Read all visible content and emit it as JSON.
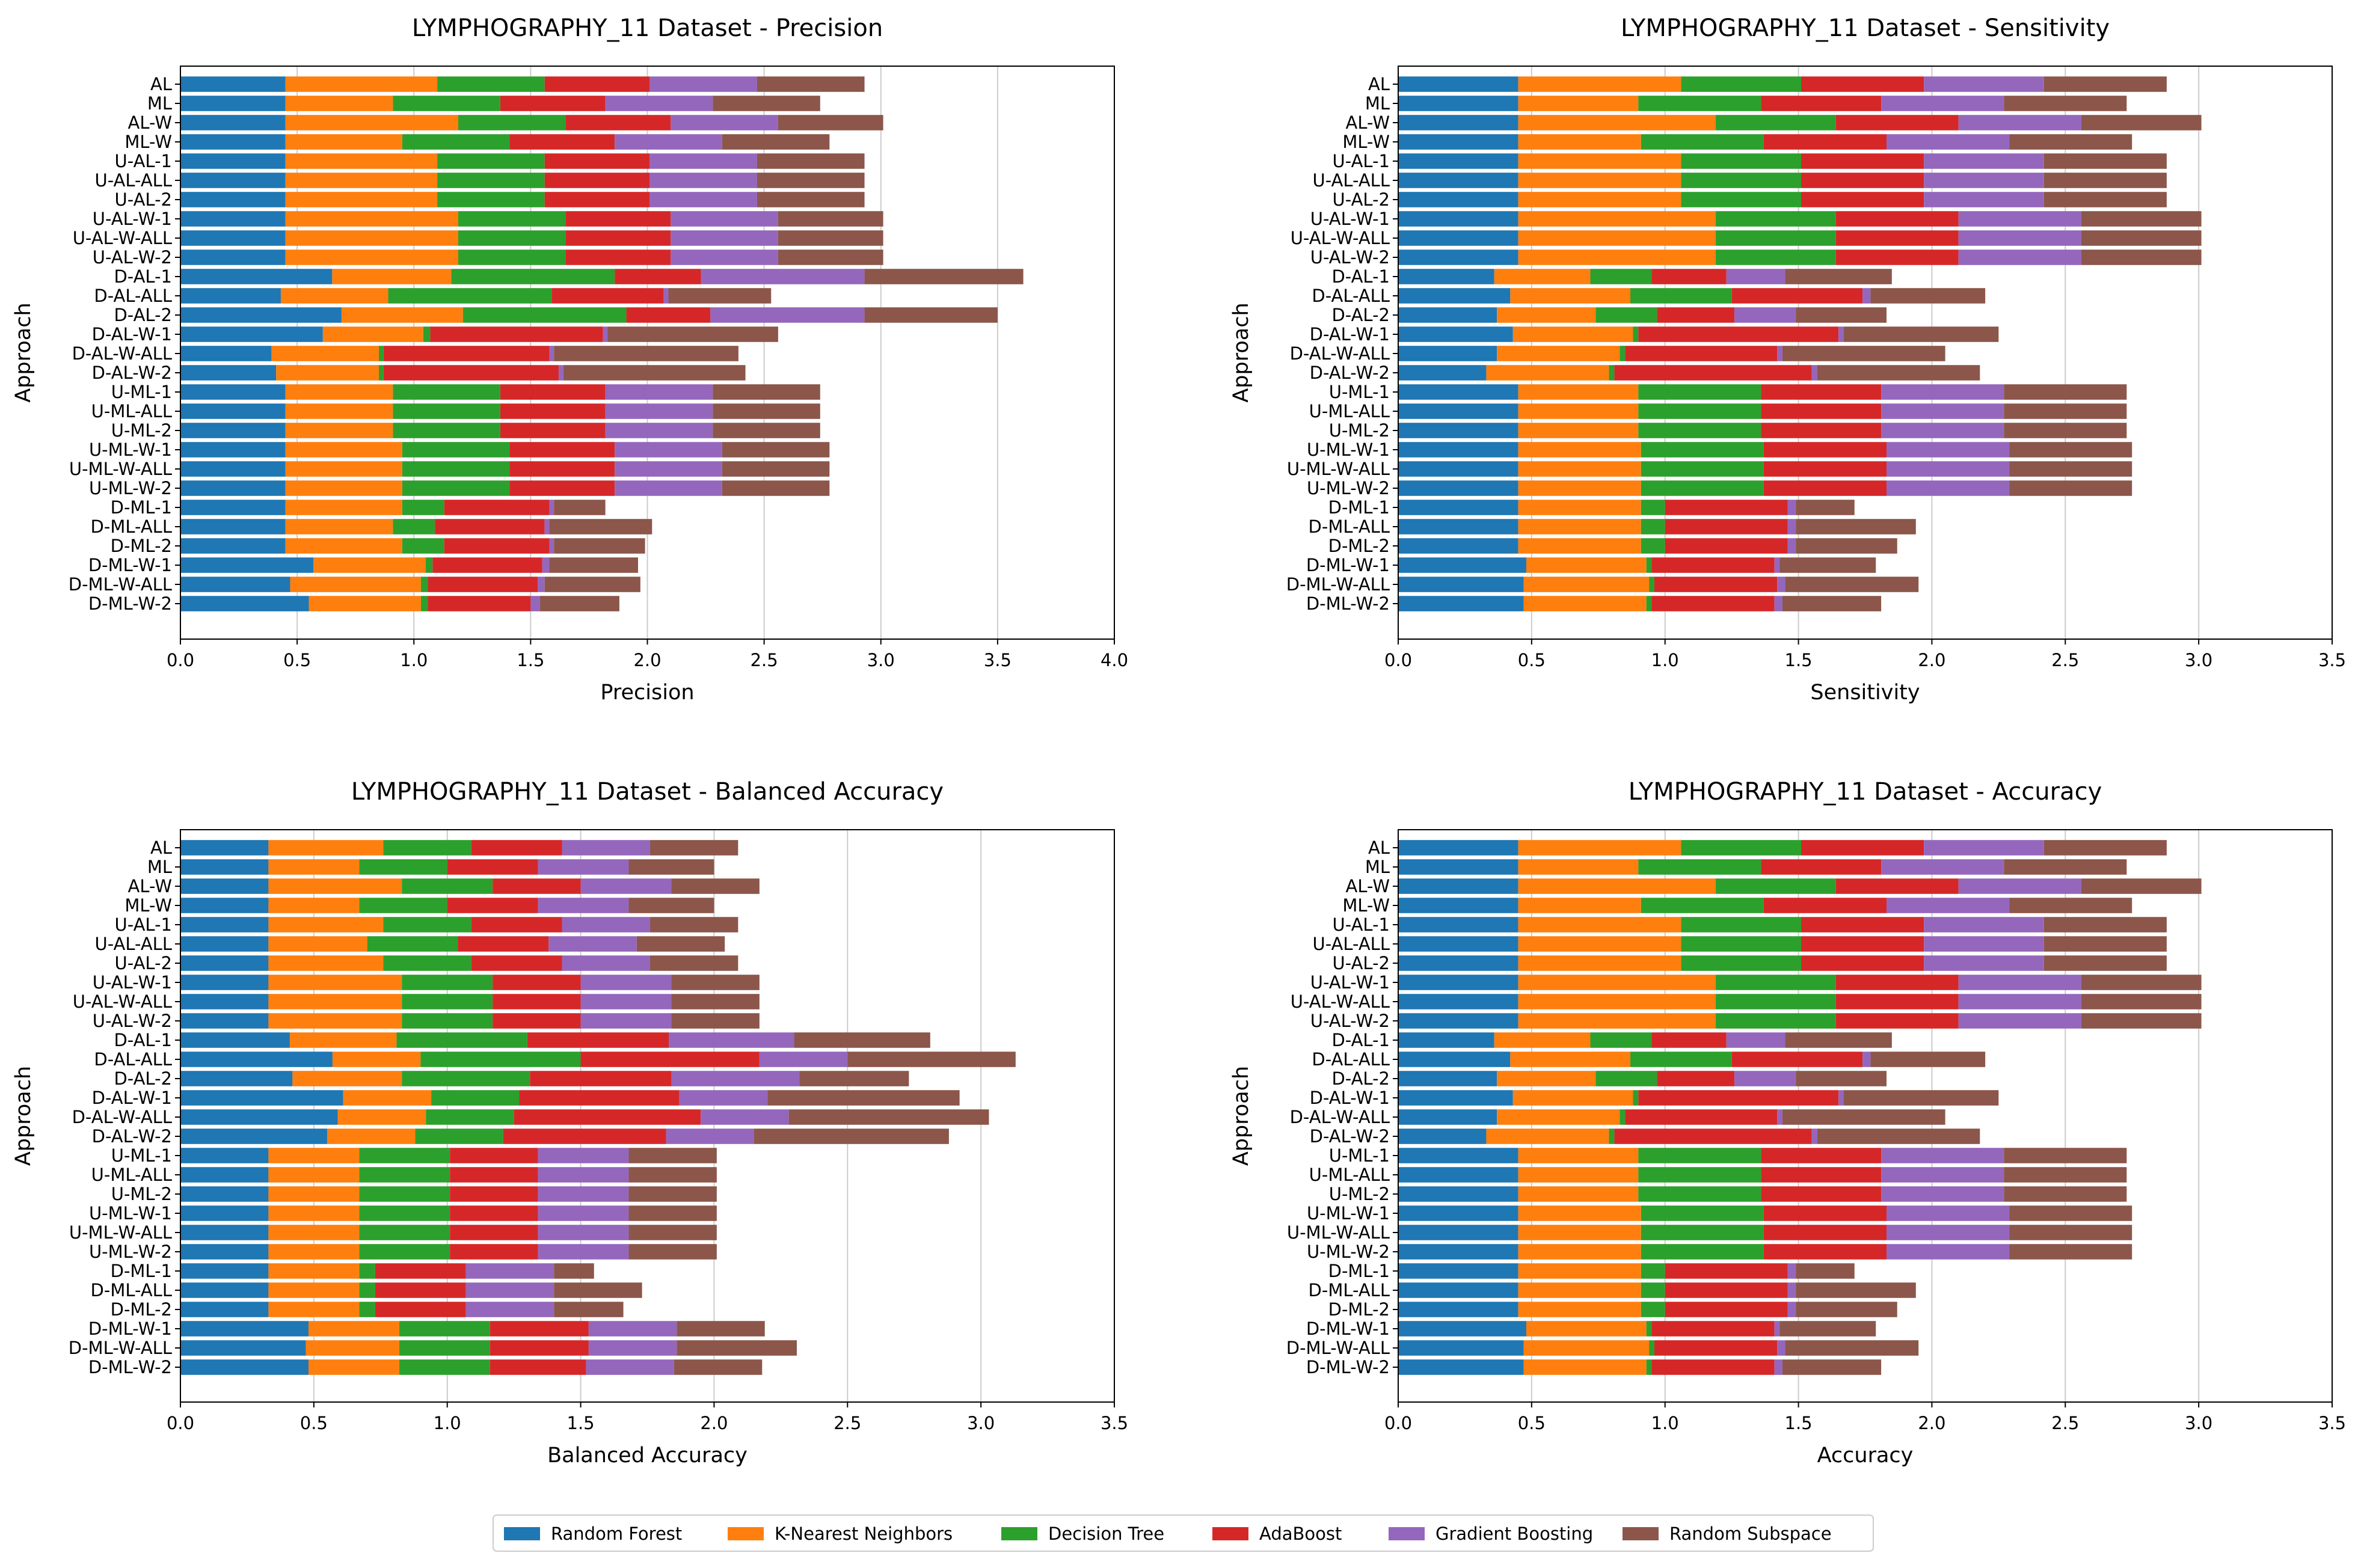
{
  "colors": {
    "Random Forest": "#1f77b4",
    "K-Nearest Neighbors": "#ff7f0e",
    "Decision Tree": "#2ca02c",
    "AdaBoost": "#d62728",
    "Gradient Boosting": "#9467bd",
    "Random Subspace": "#8c564b",
    "grid": "#cccccc"
  },
  "legend": {
    "entries": [
      "Random Forest",
      "K-Nearest Neighbors",
      "Decision Tree",
      "AdaBoost",
      "Gradient Boosting",
      "Random Subspace"
    ]
  },
  "chart_data": [
    {
      "type": "bar",
      "orientation": "horizontal-stacked",
      "title": "LYMPHOGRAPHY_11 Dataset - Precision",
      "xlabel": "Precision",
      "ylabel": "Approach",
      "xlim": [
        0,
        4.0
      ],
      "xticks": [
        "0.0",
        "0.5",
        "1.0",
        "1.5",
        "2.0",
        "2.5",
        "3.0",
        "3.5",
        "4.0"
      ],
      "grid": "vertical",
      "categories": [
        "D-ML-W-2",
        "D-ML-W-ALL",
        "D-ML-W-1",
        "D-ML-2",
        "D-ML-ALL",
        "D-ML-1",
        "U-ML-W-2",
        "U-ML-W-ALL",
        "U-ML-W-1",
        "U-ML-2",
        "U-ML-ALL",
        "U-ML-1",
        "D-AL-W-2",
        "D-AL-W-ALL",
        "D-AL-W-1",
        "D-AL-2",
        "D-AL-ALL",
        "D-AL-1",
        "U-AL-W-2",
        "U-AL-W-ALL",
        "U-AL-W-1",
        "U-AL-2",
        "U-AL-ALL",
        "U-AL-1",
        "ML-W",
        "AL-W",
        "ML",
        "AL"
      ],
      "series": [
        {
          "name": "Random Forest",
          "values": [
            0.55,
            0.47,
            0.57,
            0.45,
            0.45,
            0.45,
            0.45,
            0.45,
            0.45,
            0.45,
            0.45,
            0.45,
            0.41,
            0.39,
            0.61,
            0.69,
            0.43,
            0.65,
            0.45,
            0.45,
            0.45,
            0.45,
            0.45,
            0.45,
            0.45,
            0.45,
            0.45,
            0.45
          ]
        },
        {
          "name": "K-Nearest Neighbors",
          "values": [
            0.48,
            0.56,
            0.48,
            0.5,
            0.46,
            0.5,
            0.5,
            0.5,
            0.5,
            0.46,
            0.46,
            0.46,
            0.44,
            0.46,
            0.43,
            0.52,
            0.46,
            0.51,
            0.74,
            0.74,
            0.74,
            0.65,
            0.65,
            0.65,
            0.5,
            0.74,
            0.46,
            0.65
          ]
        },
        {
          "name": "Decision Tree",
          "values": [
            0.03,
            0.03,
            0.03,
            0.18,
            0.18,
            0.18,
            0.46,
            0.46,
            0.46,
            0.46,
            0.46,
            0.46,
            0.02,
            0.02,
            0.03,
            0.7,
            0.7,
            0.7,
            0.46,
            0.46,
            0.46,
            0.46,
            0.46,
            0.46,
            0.46,
            0.46,
            0.46,
            0.46
          ]
        },
        {
          "name": "AdaBoost",
          "values": [
            0.44,
            0.47,
            0.47,
            0.45,
            0.47,
            0.45,
            0.45,
            0.45,
            0.45,
            0.45,
            0.45,
            0.45,
            0.75,
            0.71,
            0.74,
            0.36,
            0.48,
            0.37,
            0.45,
            0.45,
            0.45,
            0.45,
            0.45,
            0.45,
            0.45,
            0.45,
            0.45,
            0.45
          ]
        },
        {
          "name": "Gradient Boosting",
          "values": [
            0.04,
            0.03,
            0.03,
            0.02,
            0.02,
            0.02,
            0.46,
            0.46,
            0.46,
            0.46,
            0.46,
            0.46,
            0.02,
            0.02,
            0.02,
            0.66,
            0.02,
            0.7,
            0.46,
            0.46,
            0.46,
            0.46,
            0.46,
            0.46,
            0.46,
            0.46,
            0.46,
            0.46
          ]
        },
        {
          "name": "Random Subspace",
          "values": [
            0.34,
            0.41,
            0.38,
            0.39,
            0.44,
            0.22,
            0.46,
            0.46,
            0.46,
            0.46,
            0.46,
            0.46,
            0.78,
            0.79,
            0.73,
            0.57,
            0.44,
            0.68,
            0.45,
            0.45,
            0.45,
            0.46,
            0.46,
            0.46,
            0.46,
            0.45,
            0.46,
            0.46
          ]
        }
      ]
    },
    {
      "type": "bar",
      "orientation": "horizontal-stacked",
      "title": "LYMPHOGRAPHY_11 Dataset - Sensitivity",
      "xlabel": "Sensitivity",
      "ylabel": "Approach",
      "xlim": [
        0,
        3.5
      ],
      "xticks": [
        "0.0",
        "0.5",
        "1.0",
        "1.5",
        "2.0",
        "2.5",
        "3.0",
        "3.5"
      ],
      "grid": "vertical",
      "categories": [
        "D-ML-W-2",
        "D-ML-W-ALL",
        "D-ML-W-1",
        "D-ML-2",
        "D-ML-ALL",
        "D-ML-1",
        "U-ML-W-2",
        "U-ML-W-ALL",
        "U-ML-W-1",
        "U-ML-2",
        "U-ML-ALL",
        "U-ML-1",
        "D-AL-W-2",
        "D-AL-W-ALL",
        "D-AL-W-1",
        "D-AL-2",
        "D-AL-ALL",
        "D-AL-1",
        "U-AL-W-2",
        "U-AL-W-ALL",
        "U-AL-W-1",
        "U-AL-2",
        "U-AL-ALL",
        "U-AL-1",
        "ML-W",
        "AL-W",
        "ML",
        "AL"
      ],
      "series": [
        {
          "name": "Random Forest",
          "values": [
            0.47,
            0.47,
            0.48,
            0.45,
            0.45,
            0.45,
            0.45,
            0.45,
            0.45,
            0.45,
            0.45,
            0.45,
            0.33,
            0.37,
            0.43,
            0.37,
            0.42,
            0.36,
            0.45,
            0.45,
            0.45,
            0.45,
            0.45,
            0.45,
            0.45,
            0.45,
            0.45,
            0.45
          ]
        },
        {
          "name": "K-Nearest Neighbors",
          "values": [
            0.46,
            0.47,
            0.45,
            0.46,
            0.46,
            0.46,
            0.46,
            0.46,
            0.46,
            0.45,
            0.45,
            0.45,
            0.46,
            0.46,
            0.45,
            0.37,
            0.45,
            0.36,
            0.74,
            0.74,
            0.74,
            0.61,
            0.61,
            0.61,
            0.46,
            0.74,
            0.45,
            0.61
          ]
        },
        {
          "name": "Decision Tree",
          "values": [
            0.02,
            0.02,
            0.02,
            0.09,
            0.09,
            0.09,
            0.46,
            0.46,
            0.46,
            0.46,
            0.46,
            0.46,
            0.02,
            0.02,
            0.02,
            0.23,
            0.38,
            0.23,
            0.45,
            0.45,
            0.45,
            0.45,
            0.45,
            0.45,
            0.46,
            0.45,
            0.46,
            0.45
          ]
        },
        {
          "name": "AdaBoost",
          "values": [
            0.46,
            0.46,
            0.46,
            0.46,
            0.46,
            0.46,
            0.46,
            0.46,
            0.46,
            0.45,
            0.45,
            0.45,
            0.74,
            0.57,
            0.75,
            0.29,
            0.49,
            0.28,
            0.46,
            0.46,
            0.46,
            0.46,
            0.46,
            0.46,
            0.46,
            0.46,
            0.45,
            0.46
          ]
        },
        {
          "name": "Gradient Boosting",
          "values": [
            0.03,
            0.03,
            0.02,
            0.03,
            0.03,
            0.03,
            0.46,
            0.46,
            0.46,
            0.46,
            0.46,
            0.46,
            0.02,
            0.02,
            0.02,
            0.23,
            0.03,
            0.22,
            0.46,
            0.46,
            0.46,
            0.45,
            0.45,
            0.45,
            0.46,
            0.46,
            0.46,
            0.45
          ]
        },
        {
          "name": "Random Subspace",
          "values": [
            0.37,
            0.5,
            0.36,
            0.38,
            0.45,
            0.22,
            0.46,
            0.46,
            0.46,
            0.46,
            0.46,
            0.46,
            0.61,
            0.61,
            0.58,
            0.34,
            0.43,
            0.4,
            0.45,
            0.45,
            0.45,
            0.46,
            0.46,
            0.46,
            0.46,
            0.45,
            0.46,
            0.46
          ]
        }
      ]
    },
    {
      "type": "bar",
      "orientation": "horizontal-stacked",
      "title": "LYMPHOGRAPHY_11 Dataset - Balanced Accuracy",
      "xlabel": "Balanced Accuracy",
      "ylabel": "Approach",
      "xlim": [
        0,
        3.5
      ],
      "xticks": [
        "0.0",
        "0.5",
        "1.0",
        "1.5",
        "2.0",
        "2.5",
        "3.0",
        "3.5"
      ],
      "grid": "vertical",
      "categories": [
        "D-ML-W-2",
        "D-ML-W-ALL",
        "D-ML-W-1",
        "D-ML-2",
        "D-ML-ALL",
        "D-ML-1",
        "U-ML-W-2",
        "U-ML-W-ALL",
        "U-ML-W-1",
        "U-ML-2",
        "U-ML-ALL",
        "U-ML-1",
        "D-AL-W-2",
        "D-AL-W-ALL",
        "D-AL-W-1",
        "D-AL-2",
        "D-AL-ALL",
        "D-AL-1",
        "U-AL-W-2",
        "U-AL-W-ALL",
        "U-AL-W-1",
        "U-AL-2",
        "U-AL-ALL",
        "U-AL-1",
        "ML-W",
        "AL-W",
        "ML",
        "AL"
      ],
      "series": [
        {
          "name": "Random Forest",
          "values": [
            0.48,
            0.47,
            0.48,
            0.33,
            0.33,
            0.33,
            0.33,
            0.33,
            0.33,
            0.33,
            0.33,
            0.33,
            0.55,
            0.59,
            0.61,
            0.42,
            0.57,
            0.41,
            0.33,
            0.33,
            0.33,
            0.33,
            0.33,
            0.33,
            0.33,
            0.33,
            0.33,
            0.33
          ]
        },
        {
          "name": "K-Nearest Neighbors",
          "values": [
            0.34,
            0.35,
            0.34,
            0.34,
            0.34,
            0.34,
            0.34,
            0.34,
            0.34,
            0.34,
            0.34,
            0.34,
            0.33,
            0.33,
            0.33,
            0.41,
            0.33,
            0.4,
            0.5,
            0.5,
            0.5,
            0.43,
            0.37,
            0.43,
            0.34,
            0.5,
            0.34,
            0.43
          ]
        },
        {
          "name": "Decision Tree",
          "values": [
            0.34,
            0.34,
            0.34,
            0.06,
            0.06,
            0.06,
            0.34,
            0.34,
            0.34,
            0.34,
            0.34,
            0.34,
            0.33,
            0.33,
            0.33,
            0.48,
            0.6,
            0.49,
            0.34,
            0.34,
            0.34,
            0.33,
            0.34,
            0.33,
            0.33,
            0.34,
            0.33,
            0.33
          ]
        },
        {
          "name": "AdaBoost",
          "values": [
            0.36,
            0.37,
            0.37,
            0.34,
            0.34,
            0.34,
            0.33,
            0.33,
            0.33,
            0.33,
            0.33,
            0.33,
            0.61,
            0.7,
            0.6,
            0.53,
            0.67,
            0.53,
            0.33,
            0.33,
            0.33,
            0.34,
            0.34,
            0.34,
            0.34,
            0.33,
            0.34,
            0.34
          ]
        },
        {
          "name": "Gradient Boosting",
          "values": [
            0.33,
            0.33,
            0.33,
            0.33,
            0.33,
            0.33,
            0.34,
            0.34,
            0.34,
            0.34,
            0.34,
            0.34,
            0.33,
            0.33,
            0.33,
            0.48,
            0.33,
            0.47,
            0.34,
            0.34,
            0.34,
            0.33,
            0.33,
            0.33,
            0.34,
            0.34,
            0.34,
            0.33
          ]
        },
        {
          "name": "Random Subspace",
          "values": [
            0.33,
            0.45,
            0.33,
            0.26,
            0.33,
            0.15,
            0.33,
            0.33,
            0.33,
            0.33,
            0.33,
            0.33,
            0.73,
            0.75,
            0.72,
            0.41,
            0.63,
            0.51,
            0.33,
            0.33,
            0.33,
            0.33,
            0.33,
            0.33,
            0.32,
            0.33,
            0.32,
            0.33
          ]
        }
      ]
    },
    {
      "type": "bar",
      "orientation": "horizontal-stacked",
      "title": "LYMPHOGRAPHY_11 Dataset - Accuracy",
      "xlabel": "Accuracy",
      "ylabel": "Approach",
      "xlim": [
        0,
        3.5
      ],
      "xticks": [
        "0.0",
        "0.5",
        "1.0",
        "1.5",
        "2.0",
        "2.5",
        "3.0",
        "3.5"
      ],
      "grid": "vertical",
      "categories": [
        "D-ML-W-2",
        "D-ML-W-ALL",
        "D-ML-W-1",
        "D-ML-2",
        "D-ML-ALL",
        "D-ML-1",
        "U-ML-W-2",
        "U-ML-W-ALL",
        "U-ML-W-1",
        "U-ML-2",
        "U-ML-ALL",
        "U-ML-1",
        "D-AL-W-2",
        "D-AL-W-ALL",
        "D-AL-W-1",
        "D-AL-2",
        "D-AL-ALL",
        "D-AL-1",
        "U-AL-W-2",
        "U-AL-W-ALL",
        "U-AL-W-1",
        "U-AL-2",
        "U-AL-ALL",
        "U-AL-1",
        "ML-W",
        "AL-W",
        "ML",
        "AL"
      ],
      "series": [
        {
          "name": "Random Forest",
          "values": [
            0.47,
            0.47,
            0.48,
            0.45,
            0.45,
            0.45,
            0.45,
            0.45,
            0.45,
            0.45,
            0.45,
            0.45,
            0.33,
            0.37,
            0.43,
            0.37,
            0.42,
            0.36,
            0.45,
            0.45,
            0.45,
            0.45,
            0.45,
            0.45,
            0.45,
            0.45,
            0.45,
            0.45
          ]
        },
        {
          "name": "K-Nearest Neighbors",
          "values": [
            0.46,
            0.47,
            0.45,
            0.46,
            0.46,
            0.46,
            0.46,
            0.46,
            0.46,
            0.45,
            0.45,
            0.45,
            0.46,
            0.46,
            0.45,
            0.37,
            0.45,
            0.36,
            0.74,
            0.74,
            0.74,
            0.61,
            0.61,
            0.61,
            0.46,
            0.74,
            0.45,
            0.61
          ]
        },
        {
          "name": "Decision Tree",
          "values": [
            0.02,
            0.02,
            0.02,
            0.09,
            0.09,
            0.09,
            0.46,
            0.46,
            0.46,
            0.46,
            0.46,
            0.46,
            0.02,
            0.02,
            0.02,
            0.23,
            0.38,
            0.23,
            0.45,
            0.45,
            0.45,
            0.45,
            0.45,
            0.45,
            0.46,
            0.45,
            0.46,
            0.45
          ]
        },
        {
          "name": "AdaBoost",
          "values": [
            0.46,
            0.46,
            0.46,
            0.46,
            0.46,
            0.46,
            0.46,
            0.46,
            0.46,
            0.45,
            0.45,
            0.45,
            0.74,
            0.57,
            0.75,
            0.29,
            0.49,
            0.28,
            0.46,
            0.46,
            0.46,
            0.46,
            0.46,
            0.46,
            0.46,
            0.46,
            0.45,
            0.46
          ]
        },
        {
          "name": "Gradient Boosting",
          "values": [
            0.03,
            0.03,
            0.02,
            0.03,
            0.03,
            0.03,
            0.46,
            0.46,
            0.46,
            0.46,
            0.46,
            0.46,
            0.02,
            0.02,
            0.02,
            0.23,
            0.03,
            0.22,
            0.46,
            0.46,
            0.46,
            0.45,
            0.45,
            0.45,
            0.46,
            0.46,
            0.46,
            0.45
          ]
        },
        {
          "name": "Random Subspace",
          "values": [
            0.37,
            0.5,
            0.36,
            0.38,
            0.45,
            0.22,
            0.46,
            0.46,
            0.46,
            0.46,
            0.46,
            0.46,
            0.61,
            0.61,
            0.58,
            0.34,
            0.43,
            0.4,
            0.45,
            0.45,
            0.45,
            0.46,
            0.46,
            0.46,
            0.46,
            0.45,
            0.46,
            0.46
          ]
        }
      ]
    }
  ]
}
